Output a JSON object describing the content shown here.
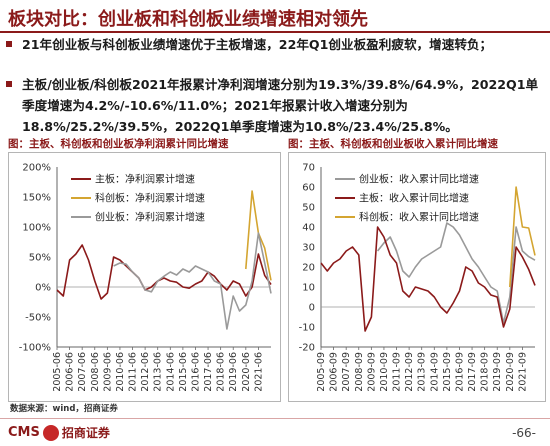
{
  "page": {
    "title": "板块对比：创业板和科创板业绩增速相对领先",
    "paragraph1": "21年创业板与科创板业绩增速优于主板增速，22年Q1创业板盈利疲软，增速转负；",
    "paragraph2": "主板/创业板/科创板2021年报累计净利润增速分别为19.3%/39.8%/64.9%，2022Q1单季度增速为4.2%/-10.6%/11.0%；2021年报累计收入增速分别为18.8%/25.2%/39.5%，2022Q1单季度增速为10.8%/23.4%/25.8%。",
    "left_panel_title": "图：主板、科创板和创业板净利润累计同比增速",
    "right_panel_title": "图：主板、科创板和创业板收入累计同比增速",
    "source": "数据来源：wind，招商证券",
    "logo_text": "CMS",
    "logo_cn": "招商证券",
    "page_number": "-66-"
  },
  "chart_data": [
    {
      "type": "line",
      "title": "图：主板、科创板和创业板净利润累计同比增速",
      "x": [
        "2005-06",
        "2005-12",
        "2006-06",
        "2006-12",
        "2007-06",
        "2007-12",
        "2008-06",
        "2008-12",
        "2009-06",
        "2009-12",
        "2010-06",
        "2010-12",
        "2011-06",
        "2011-12",
        "2012-06",
        "2012-12",
        "2013-06",
        "2013-12",
        "2014-06",
        "2014-12",
        "2015-06",
        "2015-12",
        "2016-06",
        "2016-12",
        "2017-06",
        "2017-12",
        "2018-06",
        "2018-12",
        "2019-06",
        "2019-12",
        "2020-06",
        "2020-12",
        "2021-06",
        "2021-12",
        "2022-03"
      ],
      "x_ticks": [
        "2005-06",
        "2006-06",
        "2007-06",
        "2008-06",
        "2009-06",
        "2010-06",
        "2011-06",
        "2012-06",
        "2013-06",
        "2014-06",
        "2015-06",
        "2016-06",
        "2017-06",
        "2018-06",
        "2019-06",
        "2020-06",
        "2021-06"
      ],
      "ylim": [
        -100,
        200
      ],
      "y_ticks": [
        "200%",
        "150%",
        "100%",
        "50%",
        "0%",
        "-50%",
        "-100%"
      ],
      "legend_position": "top-left",
      "series": [
        {
          "name": "主板：净利润累计增速",
          "color": "#8b1a1a",
          "values": [
            -5,
            -15,
            45,
            55,
            70,
            45,
            10,
            -20,
            -10,
            50,
            45,
            35,
            25,
            15,
            -5,
            0,
            10,
            15,
            10,
            8,
            0,
            -2,
            5,
            10,
            25,
            18,
            5,
            -5,
            10,
            5,
            -15,
            0,
            55,
            19.3,
            4.2
          ]
        },
        {
          "name": "科创板：净利润累计增速",
          "color": "#d4a531",
          "values": [
            null,
            null,
            null,
            null,
            null,
            null,
            null,
            null,
            null,
            null,
            null,
            null,
            null,
            null,
            null,
            null,
            null,
            null,
            null,
            null,
            null,
            null,
            null,
            null,
            null,
            null,
            null,
            null,
            null,
            null,
            30,
            160,
            90,
            64.9,
            11.0
          ]
        },
        {
          "name": "创业板：净利润累计增速",
          "color": "#9a9a9a",
          "values": [
            null,
            null,
            null,
            null,
            null,
            null,
            null,
            null,
            null,
            35,
            40,
            38,
            25,
            15,
            -5,
            -8,
            10,
            18,
            25,
            20,
            30,
            25,
            35,
            30,
            25,
            10,
            5,
            -70,
            -15,
            -40,
            -30,
            10,
            90,
            39.8,
            -10.6
          ]
        }
      ]
    },
    {
      "type": "line",
      "title": "图：主板、科创板和创业板收入累计同比增速",
      "x": [
        "2005-09",
        "2006-03",
        "2006-09",
        "2007-03",
        "2007-09",
        "2008-03",
        "2008-09",
        "2009-03",
        "2009-09",
        "2010-03",
        "2010-09",
        "2011-03",
        "2011-09",
        "2012-03",
        "2012-09",
        "2013-03",
        "2013-09",
        "2014-03",
        "2014-09",
        "2015-03",
        "2015-09",
        "2016-03",
        "2016-09",
        "2017-03",
        "2017-09",
        "2018-03",
        "2018-09",
        "2019-03",
        "2019-09",
        "2020-03",
        "2020-09",
        "2021-03",
        "2021-09",
        "2021-12",
        "2022-03"
      ],
      "x_ticks": [
        "2005-09",
        "2006-09",
        "2007-09",
        "2008-09",
        "2009-09",
        "2010-09",
        "2011-09",
        "2012-09",
        "2013-09",
        "2014-09",
        "2015-09",
        "2016-09",
        "2017-09",
        "2018-09",
        "2019-09",
        "2020-09",
        "2021-09"
      ],
      "ylim": [
        -20,
        70
      ],
      "y_ticks": [
        "70",
        "60",
        "50",
        "40",
        "30",
        "20",
        "10",
        "0",
        "-10",
        "-20"
      ],
      "legend_position": "top-left",
      "series": [
        {
          "name": "创业板：收入累计同比增速",
          "color": "#9a9a9a",
          "values": [
            null,
            null,
            null,
            null,
            null,
            null,
            null,
            null,
            null,
            28,
            32,
            35,
            28,
            18,
            15,
            20,
            24,
            26,
            28,
            30,
            42,
            40,
            36,
            30,
            24,
            20,
            15,
            10,
            8,
            -8,
            5,
            40,
            28,
            25.2,
            23.4
          ]
        },
        {
          "name": "主板：收入累计同比增速",
          "color": "#8b1a1a",
          "values": [
            22,
            18,
            22,
            24,
            28,
            30,
            26,
            -12,
            -5,
            40,
            35,
            26,
            22,
            8,
            5,
            10,
            9,
            8,
            5,
            0,
            -3,
            2,
            8,
            20,
            18,
            12,
            10,
            6,
            5,
            -10,
            -1,
            30,
            25,
            18.8,
            10.8
          ]
        },
        {
          "name": "科创板：收入累计同比增速",
          "color": "#d4a531",
          "values": [
            null,
            null,
            null,
            null,
            null,
            null,
            null,
            null,
            null,
            null,
            null,
            null,
            null,
            null,
            null,
            null,
            null,
            null,
            null,
            null,
            null,
            null,
            null,
            null,
            null,
            null,
            null,
            null,
            null,
            null,
            10,
            60,
            40,
            39.5,
            25.8
          ]
        }
      ]
    }
  ]
}
